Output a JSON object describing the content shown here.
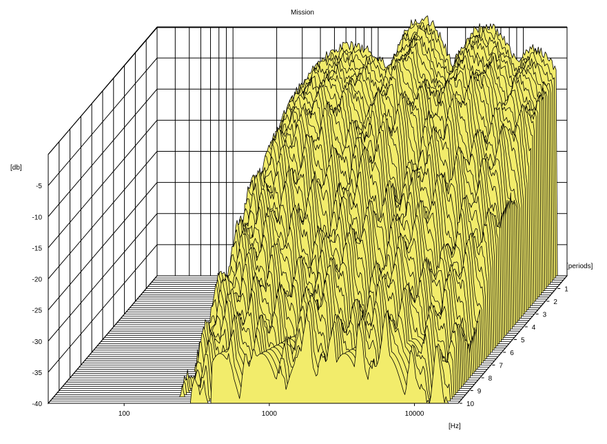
{
  "chart_data": {
    "type": "waterfall-3d",
    "title": "Mission",
    "x_axis": {
      "label": "[Hz]",
      "scale": "log",
      "range": [
        30,
        20000
      ],
      "ticks": [
        {
          "value": 100,
          "label": "100"
        },
        {
          "value": 1000,
          "label": "1000"
        },
        {
          "value": 10000,
          "label": "10000"
        }
      ]
    },
    "y_axis": {
      "label": "[db]",
      "range": [
        -40,
        0
      ],
      "ticks": [
        {
          "value": -5,
          "label": "-5"
        },
        {
          "value": -10,
          "label": "-10"
        },
        {
          "value": -15,
          "label": "-15"
        },
        {
          "value": -20,
          "label": "-20"
        },
        {
          "value": -25,
          "label": "-25"
        },
        {
          "value": -30,
          "label": "-30"
        },
        {
          "value": -35,
          "label": "-35"
        },
        {
          "value": -40,
          "label": "-40"
        }
      ]
    },
    "z_axis": {
      "label": "[periods]",
      "range": [
        0,
        10
      ],
      "ticks": [
        {
          "value": 1,
          "label": "1"
        },
        {
          "value": 2,
          "label": "2"
        },
        {
          "value": 3,
          "label": "3"
        },
        {
          "value": 4,
          "label": "4"
        },
        {
          "value": 5,
          "label": "5"
        },
        {
          "value": 6,
          "label": "6"
        },
        {
          "value": 7,
          "label": "7"
        },
        {
          "value": 8,
          "label": "8"
        },
        {
          "value": 9,
          "label": "9"
        },
        {
          "value": 10,
          "label": "10"
        }
      ]
    },
    "grid": true,
    "surface_color": "#f2ec6b",
    "line_color": "#000000",
    "wall_color": "#ffffff",
    "slice_count": 60,
    "response_peaks": [
      {
        "freq": 650,
        "db": -3.0,
        "width": 0.55
      },
      {
        "freq": 2000,
        "db": 1.3,
        "width": 0.3
      },
      {
        "freq": 5500,
        "db": 0.2,
        "width": 0.35
      },
      {
        "freq": 12000,
        "db": -3.5,
        "width": 0.3
      }
    ],
    "response_band_hz": [
      200,
      20000
    ],
    "decay_db_per_period": 3.2
  }
}
